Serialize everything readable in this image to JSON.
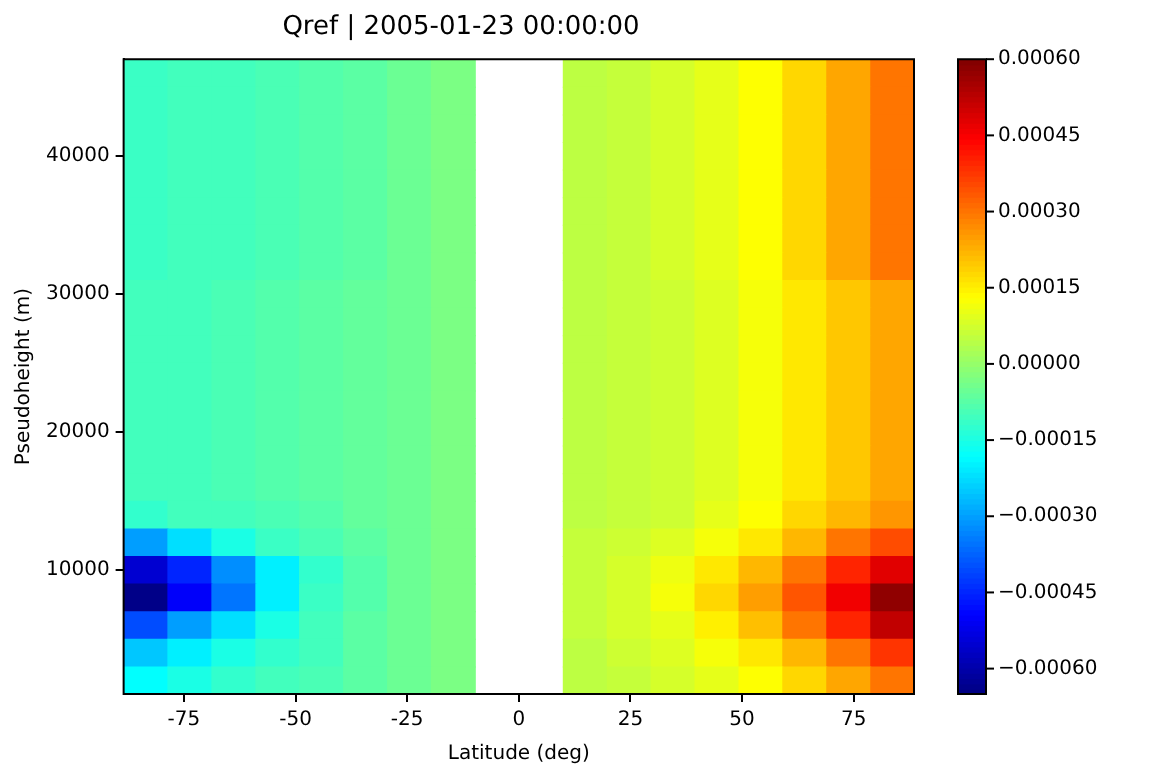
{
  "chart_data": {
    "type": "heatmap",
    "title": "Qref | 2005-01-23 00:00:00",
    "xlabel": "Latitude (deg)",
    "ylabel": "Pseudoheight (m)",
    "x": [
      -83.6,
      -73.8,
      -63.9,
      -54.1,
      -44.3,
      -34.4,
      -24.6,
      -14.8,
      -4.9,
      4.9,
      14.8,
      24.6,
      34.4,
      44.3,
      54.1,
      63.9,
      73.8,
      83.6
    ],
    "y": [
      46000,
      44000,
      42000,
      40000,
      38000,
      36000,
      34000,
      32000,
      30000,
      28000,
      26000,
      24000,
      22000,
      20000,
      18000,
      16000,
      14000,
      12000,
      10000,
      8000,
      6000,
      4000,
      2000
    ],
    "xlim": [
      -88.5,
      88.5
    ],
    "xticks": [
      -75,
      -50,
      -25,
      0,
      25,
      50,
      75
    ],
    "ylim": [
      1000,
      47000
    ],
    "yticks": [
      10000,
      20000,
      30000,
      40000
    ],
    "clim": [
      -0.00065,
      0.0006
    ],
    "cticks": [
      {
        "value": -0.0006,
        "label": "−0.00060"
      },
      {
        "value": -0.00045,
        "label": "−0.00045"
      },
      {
        "value": -0.0003,
        "label": "−0.00030"
      },
      {
        "value": -0.00015,
        "label": "−0.00015"
      },
      {
        "value": 0,
        "label": "0.00000"
      },
      {
        "value": 0.00015,
        "label": "0.00015"
      },
      {
        "value": 0.0003,
        "label": "0.00030"
      },
      {
        "value": 0.00045,
        "label": "0.00045"
      },
      {
        "value": 0.0006,
        "label": "0.00060"
      }
    ],
    "cells": [
      [
        -0.00011,
        -0.0001,
        -0.0001,
        -9e-05,
        -8e-05,
        -7e-05,
        -5e-05,
        -3e-05,
        null,
        null,
        5e-05,
        6e-05,
        8e-05,
        0.0001,
        0.00013,
        0.00018,
        0.00024,
        0.0003
      ],
      [
        -0.00011,
        -0.0001,
        -0.0001,
        -9e-05,
        -8e-05,
        -7e-05,
        -5e-05,
        -3e-05,
        null,
        null,
        5e-05,
        6e-05,
        8e-05,
        0.0001,
        0.00013,
        0.00018,
        0.00024,
        0.0003
      ],
      [
        -0.00011,
        -0.0001,
        -0.0001,
        -9e-05,
        -8e-05,
        -7e-05,
        -5e-05,
        -3e-05,
        null,
        null,
        5e-05,
        6e-05,
        8e-05,
        0.0001,
        0.00013,
        0.00018,
        0.00024,
        0.0003
      ],
      [
        -0.00011,
        -0.0001,
        -0.0001,
        -9e-05,
        -8e-05,
        -7e-05,
        -5e-05,
        -3e-05,
        null,
        null,
        5e-05,
        6e-05,
        8e-05,
        0.0001,
        0.00013,
        0.00018,
        0.00024,
        0.0003
      ],
      [
        -0.00011,
        -0.0001,
        -0.0001,
        -9e-05,
        -8e-05,
        -7e-05,
        -5e-05,
        -3e-05,
        null,
        null,
        5e-05,
        6e-05,
        8e-05,
        0.0001,
        0.00013,
        0.00018,
        0.00024,
        0.0003
      ],
      [
        -0.00011,
        -0.0001,
        -0.0001,
        -9e-05,
        -8e-05,
        -7e-05,
        -5e-05,
        -3e-05,
        null,
        null,
        5e-05,
        6e-05,
        8e-05,
        0.0001,
        0.00013,
        0.00018,
        0.00024,
        0.0003
      ],
      [
        -0.00011,
        -0.0001,
        -0.0001,
        -9e-05,
        -8e-05,
        -7e-05,
        -5e-05,
        -3e-05,
        null,
        null,
        5e-05,
        6e-05,
        8e-05,
        0.0001,
        0.00013,
        0.00018,
        0.00024,
        0.0003
      ],
      [
        -0.00011,
        -0.0001,
        -0.0001,
        -9e-05,
        -8e-05,
        -7e-05,
        -5e-05,
        -3e-05,
        null,
        null,
        5e-05,
        6e-05,
        8e-05,
        0.0001,
        0.00013,
        0.00018,
        0.00024,
        0.0003
      ],
      [
        -0.0001,
        -0.0001,
        -9e-05,
        -8e-05,
        -7e-05,
        -6e-05,
        -5e-05,
        -3e-05,
        null,
        null,
        5e-05,
        6e-05,
        7e-05,
        9e-05,
        0.00012,
        0.00016,
        0.0002,
        0.00024
      ],
      [
        -0.0001,
        -0.0001,
        -9e-05,
        -8e-05,
        -7e-05,
        -6e-05,
        -5e-05,
        -3e-05,
        null,
        null,
        5e-05,
        6e-05,
        7e-05,
        9e-05,
        0.00012,
        0.00016,
        0.0002,
        0.00024
      ],
      [
        -0.0001,
        -0.0001,
        -9e-05,
        -8e-05,
        -7e-05,
        -6e-05,
        -5e-05,
        -3e-05,
        null,
        null,
        5e-05,
        6e-05,
        7e-05,
        9e-05,
        0.00012,
        0.00016,
        0.0002,
        0.00024
      ],
      [
        -0.0001,
        -0.0001,
        -9e-05,
        -8e-05,
        -7e-05,
        -6e-05,
        -5e-05,
        -3e-05,
        null,
        null,
        5e-05,
        6e-05,
        7e-05,
        9e-05,
        0.00012,
        0.00016,
        0.0002,
        0.00024
      ],
      [
        -0.0001,
        -0.0001,
        -9e-05,
        -8e-05,
        -7e-05,
        -6e-05,
        -5e-05,
        -3e-05,
        null,
        null,
        5e-05,
        6e-05,
        7e-05,
        9e-05,
        0.00012,
        0.00016,
        0.0002,
        0.00024
      ],
      [
        -0.0001,
        -0.0001,
        -9e-05,
        -8e-05,
        -7e-05,
        -6e-05,
        -5e-05,
        -3e-05,
        null,
        null,
        5e-05,
        6e-05,
        7e-05,
        9e-05,
        0.00012,
        0.00016,
        0.0002,
        0.00024
      ],
      [
        -0.0001,
        -0.0001,
        -9e-05,
        -8e-05,
        -7e-05,
        -6e-05,
        -5e-05,
        -3e-05,
        null,
        null,
        5e-05,
        6e-05,
        7e-05,
        9e-05,
        0.00012,
        0.00016,
        0.0002,
        0.00024
      ],
      [
        -0.0001,
        -0.0001,
        -9e-05,
        -8e-05,
        -7e-05,
        -6e-05,
        -5e-05,
        -3e-05,
        null,
        null,
        5e-05,
        6e-05,
        7e-05,
        9e-05,
        0.00012,
        0.00016,
        0.0002,
        0.00024
      ],
      [
        -0.00012,
        -0.0001,
        -0.0001,
        -9e-05,
        -8e-05,
        -6e-05,
        -5e-05,
        -3e-05,
        null,
        null,
        5e-05,
        6e-05,
        7e-05,
        0.0001,
        0.00013,
        0.00018,
        0.00022,
        0.00026
      ],
      [
        -0.0003,
        -0.00022,
        -0.00015,
        -0.00011,
        -9e-05,
        -7e-05,
        -5e-05,
        -3e-05,
        null,
        null,
        6e-05,
        7e-05,
        9e-05,
        0.00012,
        0.00016,
        0.00022,
        0.0003,
        0.00035
      ],
      [
        -0.00055,
        -0.00045,
        -0.00032,
        -0.0002,
        -0.00012,
        -8e-05,
        -5e-05,
        -3e-05,
        null,
        null,
        6e-05,
        8e-05,
        0.00011,
        0.00016,
        0.00022,
        0.0003,
        0.0004,
        0.00048
      ],
      [
        -0.00064,
        -0.0005,
        -0.00035,
        -0.0002,
        -0.00011,
        -8e-05,
        -5e-05,
        -3e-05,
        null,
        null,
        6e-05,
        8e-05,
        0.00012,
        0.00018,
        0.00025,
        0.00034,
        0.00046,
        0.00058
      ],
      [
        -0.0004,
        -0.0003,
        -0.00022,
        -0.00015,
        -0.0001,
        -7e-05,
        -5e-05,
        -3e-05,
        null,
        null,
        6e-05,
        8e-05,
        0.0001,
        0.00015,
        0.00021,
        0.0003,
        0.0004,
        0.00052
      ],
      [
        -0.00025,
        -0.0002,
        -0.00015,
        -0.00012,
        -0.0001,
        -7e-05,
        -5e-05,
        -3e-05,
        null,
        null,
        5e-05,
        7e-05,
        9e-05,
        0.00012,
        0.00016,
        0.00022,
        0.0003,
        0.00038
      ],
      [
        -0.00018,
        -0.00015,
        -0.00012,
        -0.0001,
        -9e-05,
        -7e-05,
        -5e-05,
        -3e-05,
        null,
        null,
        5e-05,
        6e-05,
        8e-05,
        0.0001,
        0.00013,
        0.00018,
        0.00024,
        0.0003
      ]
    ]
  }
}
